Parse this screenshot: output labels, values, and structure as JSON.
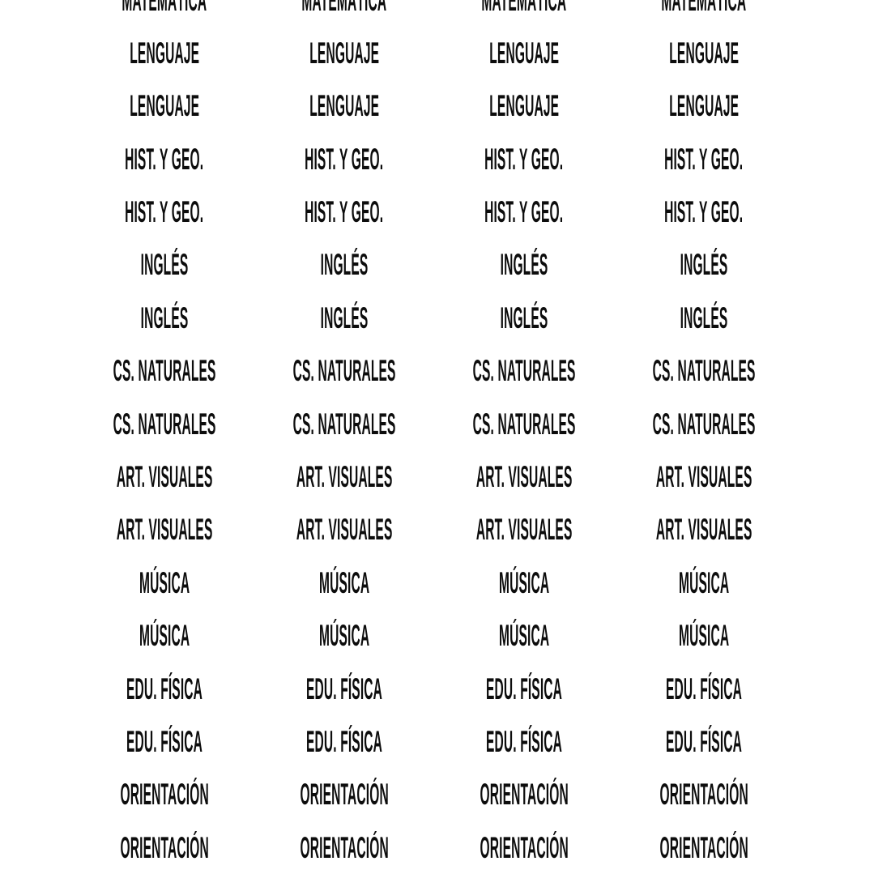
{
  "page": {
    "background": "#ffffff",
    "text_color": "#0d0d0d"
  },
  "label_grid": {
    "columns": 4,
    "rows": [
      "MATEMÁTICA",
      "LENGUAJE",
      "LENGUAJE",
      "HIST. Y GEO.",
      "HIST. Y GEO.",
      "INGLÉS",
      "INGLÉS",
      "CS. NATURALES",
      "CS. NATURALES",
      "ART. VISUALES",
      "ART. VISUALES",
      "MÚSICA",
      "MÚSICA",
      "EDU. FÍSICA",
      "EDU. FÍSICA",
      "ORIENTACIÓN",
      "ORIENTACIÓN"
    ]
  }
}
